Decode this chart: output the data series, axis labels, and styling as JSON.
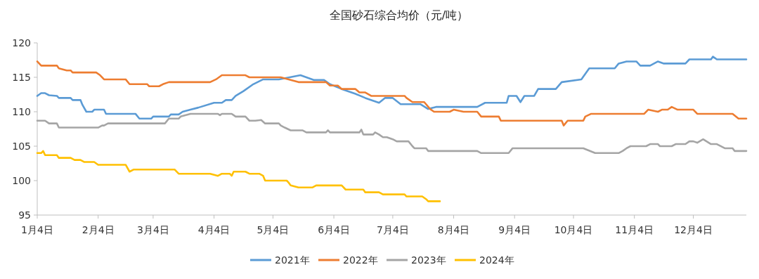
{
  "chart_data": {
    "type": "line",
    "title": "全国砂石综合均价（元/吨）",
    "legend": "bottom",
    "line_style": "solid",
    "xlim": [
      "--01-04",
      "--12-31"
    ],
    "ylim": [
      95,
      120
    ],
    "yticks": [
      95,
      100,
      105,
      110,
      115,
      120
    ],
    "xticks": [
      {
        "value": "--01-04",
        "label": "1月4日"
      },
      {
        "value": "--02-04",
        "label": "2月4日"
      },
      {
        "value": "--03-04",
        "label": "3月4日"
      },
      {
        "value": "--04-04",
        "label": "4月4日"
      },
      {
        "value": "--05-04",
        "label": "5月4日"
      },
      {
        "value": "--06-04",
        "label": "6月4日"
      },
      {
        "value": "--07-04",
        "label": "7月4日"
      },
      {
        "value": "--08-04",
        "label": "8月4日"
      },
      {
        "value": "--09-04",
        "label": "9月4日"
      },
      {
        "value": "--10-04",
        "label": "10月4日"
      },
      {
        "value": "--11-04",
        "label": "11月4日"
      },
      {
        "value": "--12-04",
        "label": "12月4日"
      }
    ],
    "series": [
      {
        "name": "2021年",
        "color": "#5b9bd5",
        "x": [
          "--01-04",
          "--01-06",
          "--01-08",
          "--01-10",
          "--01-14",
          "--01-15",
          "--01-21",
          "--01-22",
          "--01-26",
          "--01-27",
          "--01-29",
          "--02-01",
          "--02-02",
          "--02-07",
          "--02-08",
          "--02-23",
          "--02-25",
          "--03-03",
          "--03-04",
          "--03-12",
          "--03-13",
          "--03-17",
          "--03-19",
          "--03-23",
          "--03-27",
          "--04-04",
          "--04-08",
          "--04-10",
          "--04-13",
          "--04-15",
          "--04-19",
          "--04-24",
          "--04-29",
          "--05-07",
          "--05-18",
          "--05-25",
          "--05-30",
          "--06-02",
          "--06-08",
          "--06-15",
          "--06-20",
          "--06-27",
          "--06-30",
          "--07-04",
          "--07-08",
          "--07-18",
          "--07-22",
          "--07-26",
          "--08-16",
          "--08-20",
          "--08-31",
          "--09-01",
          "--09-05",
          "--09-07",
          "--09-09",
          "--09-14",
          "--09-16",
          "--09-25",
          "--09-28",
          "--10-08",
          "--10-12",
          "--10-25",
          "--10-27",
          "--10-31",
          "--11-05",
          "--11-07",
          "--11-12",
          "--11-16",
          "--11-19",
          "--11-30",
          "--12-02",
          "--12-13",
          "--12-14",
          "--12-16",
          "--12-31"
        ],
        "values": [
          112.3,
          112.7,
          112.7,
          112.4,
          112.3,
          112.0,
          112.0,
          111.7,
          111.7,
          111.0,
          110.0,
          110.0,
          110.3,
          110.3,
          109.7,
          109.7,
          109.0,
          109.0,
          109.3,
          109.3,
          109.6,
          109.6,
          110.0,
          110.3,
          110.6,
          111.3,
          111.3,
          111.7,
          111.7,
          112.3,
          113.0,
          114.0,
          114.7,
          114.7,
          115.3,
          114.6,
          114.6,
          114.0,
          113.3,
          112.6,
          112.0,
          111.3,
          112.0,
          112.0,
          111.1,
          111.1,
          110.4,
          110.7,
          110.7,
          111.3,
          111.3,
          112.3,
          112.3,
          111.4,
          112.3,
          112.3,
          113.3,
          113.3,
          114.3,
          114.7,
          116.3,
          116.3,
          117.0,
          117.3,
          117.3,
          116.7,
          116.7,
          117.3,
          117.0,
          117.0,
          117.6,
          117.6,
          118.0,
          117.6,
          117.6
        ]
      },
      {
        "name": "2022年",
        "color": "#ed7d31",
        "x": [
          "--01-04",
          "--01-06",
          "--01-14",
          "--01-15",
          "--01-19",
          "--01-21",
          "--01-22",
          "--02-03",
          "--02-05",
          "--02-07",
          "--02-18",
          "--02-20",
          "--03-01",
          "--03-02",
          "--03-07",
          "--03-09",
          "--03-12",
          "--04-02",
          "--04-05",
          "--04-08",
          "--04-20",
          "--04-22",
          "--05-08",
          "--05-12",
          "--05-17",
          "--05-31",
          "--06-02",
          "--06-06",
          "--06-08",
          "--06-15",
          "--06-17",
          "--06-20",
          "--06-23",
          "--07-10",
          "--07-11",
          "--07-14",
          "--07-20",
          "--07-23",
          "--07-25",
          "--08-02",
          "--08-04",
          "--08-09",
          "--08-16",
          "--08-18",
          "--08-27",
          "--08-28",
          "--09-28",
          "--09-29",
          "--10-01",
          "--10-09",
          "--10-10",
          "--10-13",
          "--11-09",
          "--11-11",
          "--11-16",
          "--11-18",
          "--11-21",
          "--11-23",
          "--11-26",
          "--11-30",
          "--12-04",
          "--12-06",
          "--12-24",
          "--12-27",
          "--12-31"
        ],
        "values": [
          117.3,
          116.7,
          116.7,
          116.3,
          116.0,
          116.0,
          115.7,
          115.7,
          115.3,
          114.7,
          114.7,
          114.0,
          114.0,
          113.7,
          113.7,
          114.0,
          114.3,
          114.3,
          114.7,
          115.3,
          115.3,
          115.0,
          115.0,
          114.7,
          114.3,
          114.3,
          113.8,
          113.8,
          113.3,
          113.3,
          112.8,
          112.8,
          112.3,
          112.3,
          112.0,
          111.4,
          111.4,
          110.4,
          110.0,
          110.0,
          110.3,
          110.0,
          110.0,
          109.3,
          109.3,
          108.7,
          108.7,
          108.0,
          108.7,
          108.7,
          109.3,
          109.7,
          109.7,
          110.3,
          110.0,
          110.3,
          110.3,
          110.7,
          110.3,
          110.3,
          110.3,
          109.7,
          109.7,
          109.0,
          109.0
        ]
      },
      {
        "name": "2023年",
        "color": "#a5a5a5",
        "x": [
          "--01-04",
          "--01-08",
          "--01-10",
          "--01-14",
          "--01-15",
          "--02-04",
          "--02-06",
          "--02-07",
          "--02-09",
          "--03-10",
          "--03-12",
          "--03-17",
          "--03-18",
          "--03-23",
          "--04-06",
          "--04-07",
          "--04-08",
          "--04-13",
          "--04-15",
          "--04-20",
          "--04-22",
          "--04-25",
          "--04-28",
          "--04-30",
          "--05-07",
          "--05-08",
          "--05-10",
          "--05-13",
          "--05-19",
          "--05-21",
          "--05-31",
          "--06-01",
          "--06-02",
          "--06-17",
          "--06-18",
          "--06-19",
          "--06-24",
          "--06-25",
          "--06-27",
          "--06-29",
          "--07-01",
          "--07-04",
          "--07-06",
          "--07-12",
          "--07-14",
          "--07-15",
          "--07-21",
          "--07-22",
          "--08-16",
          "--08-18",
          "--09-01",
          "--09-03",
          "--10-09",
          "--10-15",
          "--10-27",
          "--10-29",
          "--10-31",
          "--11-02",
          "--11-10",
          "--11-12",
          "--11-16",
          "--11-17",
          "--11-23",
          "--11-25",
          "--11-30",
          "--12-02",
          "--12-04",
          "--12-06",
          "--12-09",
          "--12-13",
          "--12-16",
          "--12-20",
          "--12-24",
          "--12-25",
          "--12-31"
        ],
        "values": [
          108.7,
          108.7,
          108.3,
          108.3,
          107.7,
          107.7,
          108.0,
          108.0,
          108.3,
          108.3,
          109.0,
          109.0,
          109.3,
          109.7,
          109.7,
          109.5,
          109.7,
          109.7,
          109.3,
          109.3,
          108.7,
          108.7,
          108.8,
          108.3,
          108.3,
          108.0,
          107.7,
          107.3,
          107.3,
          107.0,
          107.0,
          107.3,
          107.0,
          107.0,
          107.4,
          106.7,
          106.7,
          107.0,
          106.7,
          106.3,
          106.3,
          106.0,
          105.7,
          105.7,
          105.0,
          104.7,
          104.7,
          104.3,
          104.3,
          104.0,
          104.0,
          104.7,
          104.7,
          104.0,
          104.0,
          104.3,
          104.7,
          105.0,
          105.0,
          105.3,
          105.3,
          105.0,
          105.0,
          105.3,
          105.3,
          105.7,
          105.7,
          105.5,
          106.0,
          105.3,
          105.3,
          104.7,
          104.7,
          104.3,
          104.3
        ]
      },
      {
        "name": "2024年",
        "color": "#ffc000",
        "x": [
          "--01-04",
          "--01-06",
          "--01-07",
          "--01-08",
          "--01-14",
          "--01-15",
          "--01-21",
          "--01-23",
          "--01-26",
          "--01-28",
          "--02-02",
          "--02-04",
          "--02-18",
          "--02-20",
          "--02-22",
          "--03-15",
          "--03-17",
          "--04-02",
          "--04-06",
          "--04-08",
          "--04-12",
          "--04-13",
          "--04-14",
          "--04-20",
          "--04-22",
          "--04-27",
          "--04-29",
          "--04-30",
          "--05-11",
          "--05-12",
          "--05-13",
          "--05-17",
          "--05-24",
          "--05-26",
          "--06-08",
          "--06-10",
          "--06-19",
          "--06-20",
          "--06-27",
          "--06-29",
          "--07-10",
          "--07-11",
          "--07-19",
          "--07-21",
          "--07-22",
          "--07-28"
        ],
        "values": [
          104.0,
          104.0,
          104.3,
          103.7,
          103.7,
          103.3,
          103.3,
          103.0,
          103.0,
          102.7,
          102.7,
          102.3,
          102.3,
          101.3,
          101.6,
          101.6,
          101.0,
          101.0,
          100.7,
          101.0,
          101.0,
          100.7,
          101.3,
          101.3,
          101.0,
          101.0,
          100.7,
          100.0,
          100.0,
          99.7,
          99.3,
          99.0,
          99.0,
          99.3,
          99.3,
          98.7,
          98.7,
          98.3,
          98.3,
          98.0,
          98.0,
          97.7,
          97.7,
          97.3,
          97.0,
          97.0
        ]
      }
    ]
  }
}
